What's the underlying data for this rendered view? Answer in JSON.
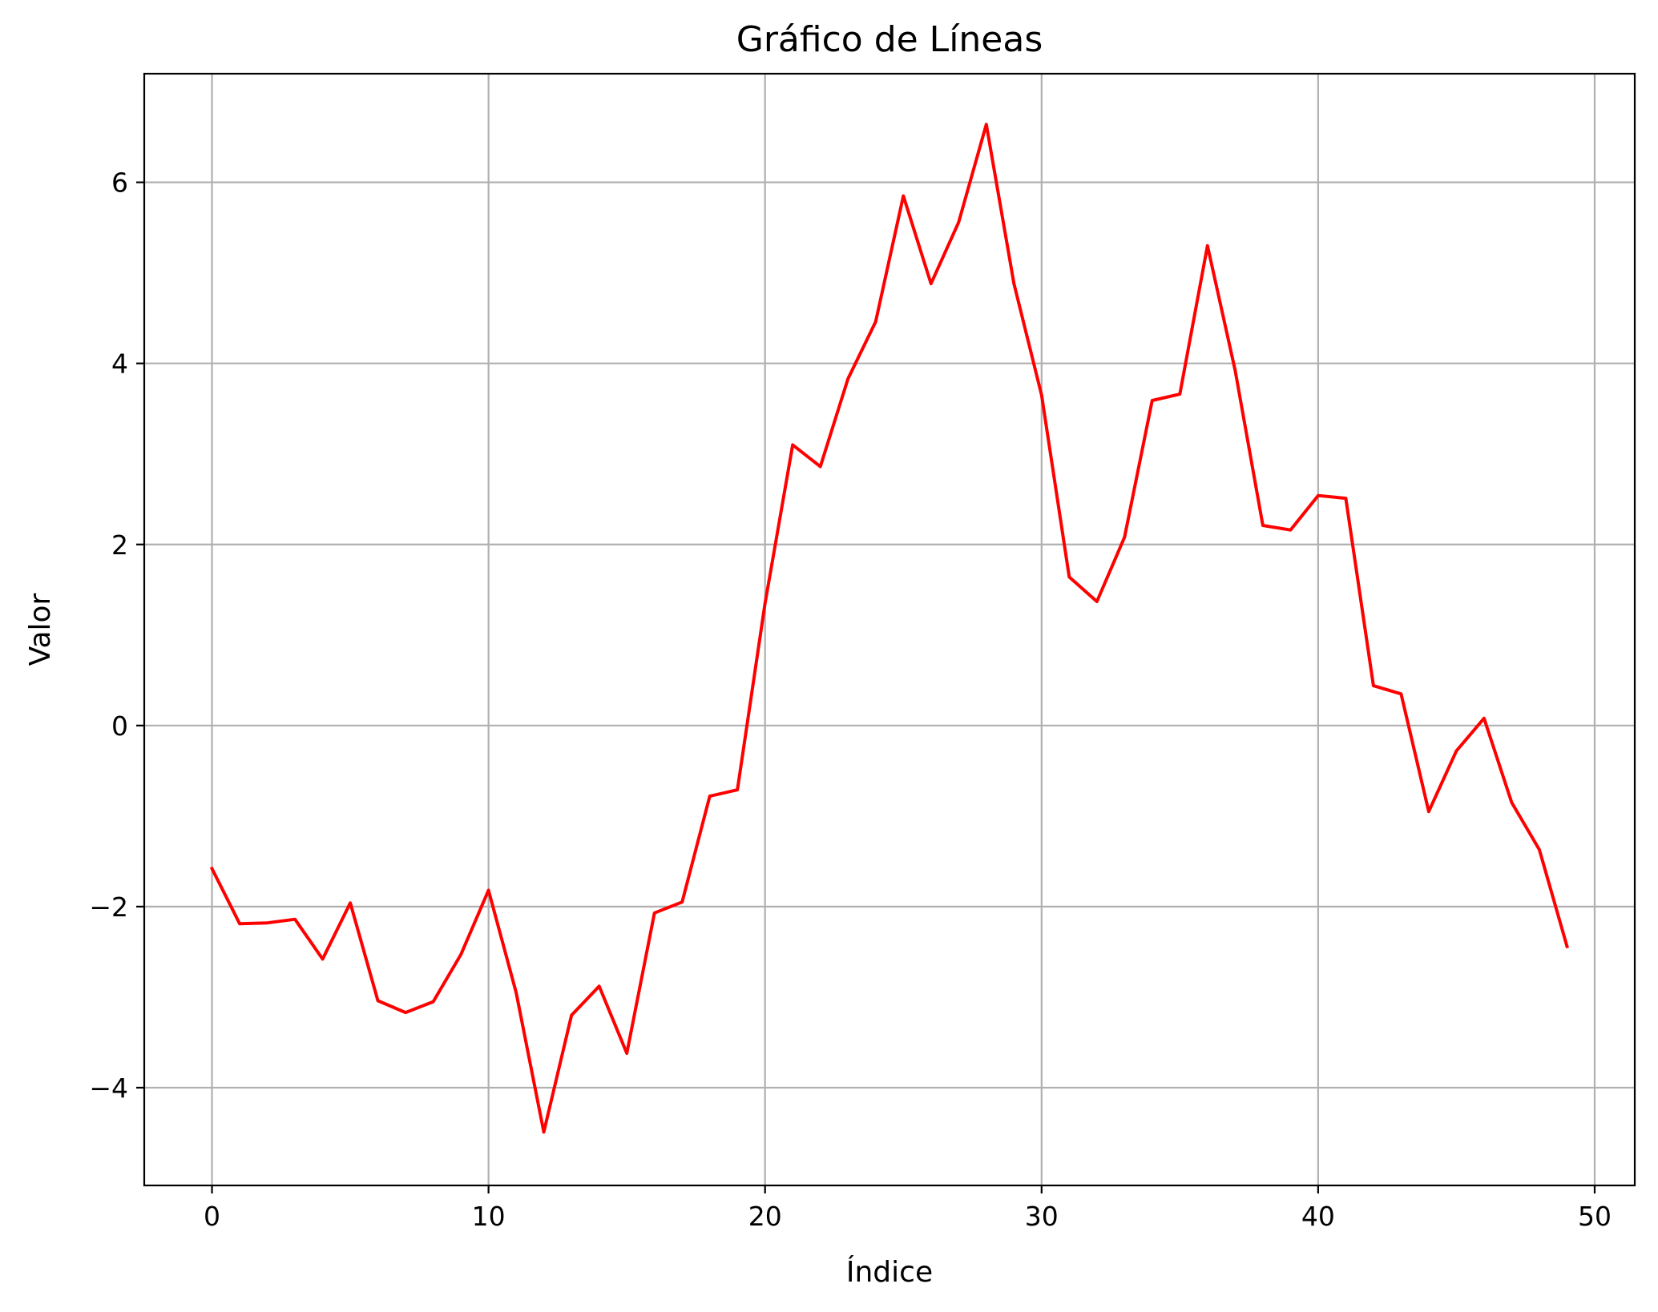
{
  "chart_data": {
    "type": "line",
    "title": "Gráfico de Líneas",
    "xlabel": "Índice",
    "ylabel": "Valor",
    "xlim": [
      -2.45,
      51.45
    ],
    "ylim": [
      -5.08,
      7.2
    ],
    "grid": true,
    "x_ticks": [
      0,
      10,
      20,
      30,
      40,
      50
    ],
    "y_ticks": [
      -4,
      -2,
      0,
      2,
      4,
      6
    ],
    "x_tick_labels": [
      "0",
      "10",
      "20",
      "30",
      "40",
      "50"
    ],
    "y_tick_labels": [
      "−4",
      "−2",
      "0",
      "2",
      "4",
      "6"
    ],
    "series": [
      {
        "color": "#ff0000",
        "x": [
          0,
          1,
          2,
          3,
          4,
          5,
          6,
          7,
          8,
          9,
          10,
          11,
          12,
          13,
          14,
          15,
          16,
          17,
          18,
          19,
          20,
          21,
          22,
          23,
          24,
          25,
          26,
          27,
          28,
          29,
          30,
          31,
          32,
          33,
          34,
          35,
          36,
          37,
          38,
          39,
          40,
          41,
          42,
          43,
          44,
          45,
          46,
          47,
          48,
          49
        ],
        "values": [
          -1.58,
          -2.19,
          -2.18,
          -2.14,
          -2.58,
          -1.96,
          -3.04,
          -3.17,
          -3.05,
          -2.53,
          -1.82,
          -2.95,
          -4.49,
          -3.2,
          -2.88,
          -3.62,
          -2.07,
          -1.95,
          -0.78,
          -0.71,
          1.35,
          3.1,
          2.86,
          3.83,
          4.46,
          5.85,
          4.88,
          5.56,
          6.64,
          4.88,
          3.65,
          1.64,
          1.37,
          2.08,
          3.59,
          3.66,
          5.3,
          3.92,
          2.21,
          2.16,
          2.54,
          2.51,
          0.44,
          0.35,
          -0.95,
          -0.28,
          0.08,
          -0.85,
          -1.37,
          -2.44
        ]
      }
    ]
  }
}
